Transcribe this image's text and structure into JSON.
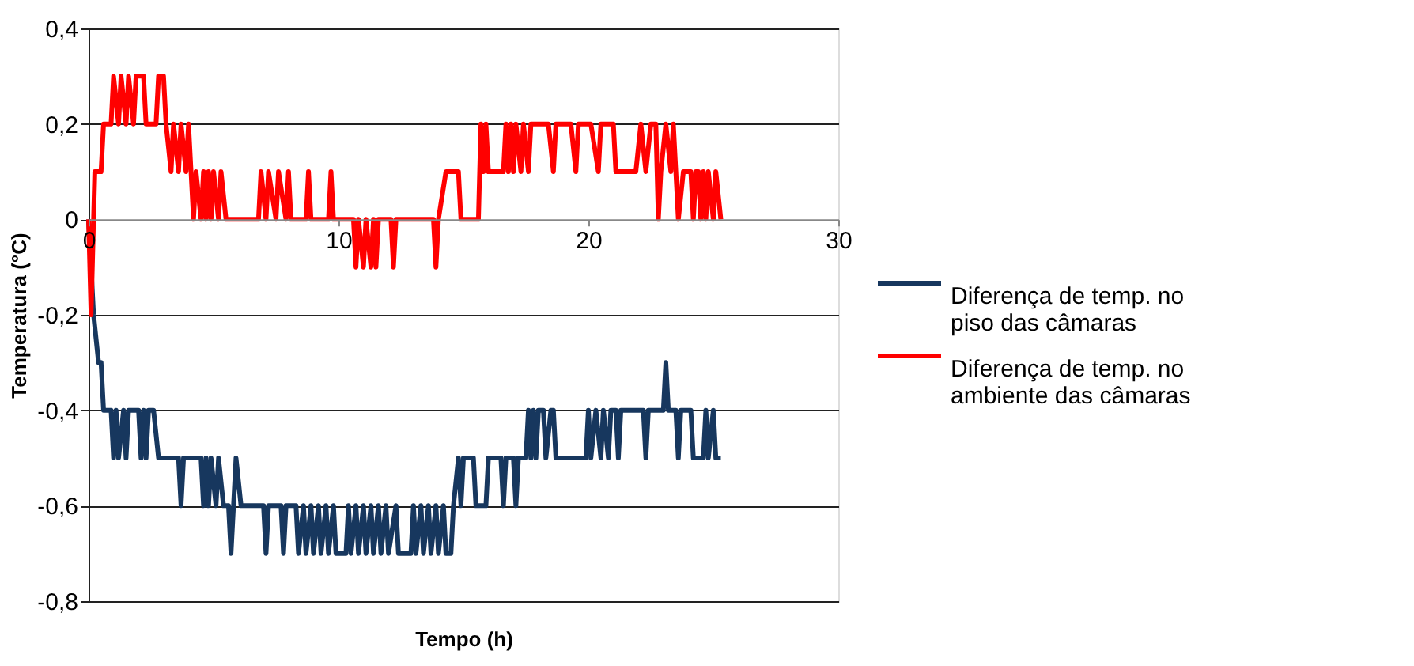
{
  "chart_data": {
    "type": "line",
    "xlabel": "Tempo (h)",
    "ylabel": "Temperatura (°C)",
    "xlim": [
      0,
      30
    ],
    "xticks": [
      0,
      10,
      20,
      30
    ],
    "ylim": [
      -0.8,
      0.4
    ],
    "yticks": [
      {
        "value": 0.4,
        "label": "0,4"
      },
      {
        "value": 0.2,
        "label": "0,2"
      },
      0,
      {
        "value": -0.2,
        "label": "-0,2"
      },
      {
        "value": -0.4,
        "label": "-0,4"
      },
      {
        "value": -0.6,
        "label": "-0,6"
      },
      {
        "value": -0.8,
        "label": "-0,8"
      }
    ],
    "grid": "y",
    "legend": "right",
    "marker": "none",
    "line_style": "solid",
    "series": [
      {
        "name": "Diferença de temp. no piso das câmaras",
        "color": "#17375e",
        "x": [
          0,
          0.2,
          0.4,
          0.5,
          0.6,
          0.9,
          1.0,
          1.1,
          1.2,
          1.4,
          1.5,
          1.6,
          2.0,
          2.1,
          2.2,
          2.3,
          2.4,
          2.6,
          2.8,
          3.6,
          3.7,
          3.8,
          4.5,
          4.6,
          4.7,
          4.8,
          4.9,
          5.1,
          5.2,
          5.4,
          5.6,
          5.7,
          5.8,
          5.9,
          6.1,
          7.0,
          7.1,
          7.2,
          7.7,
          7.8,
          7.9,
          8.3,
          8.4,
          8.6,
          8.7,
          8.9,
          9.0,
          9.2,
          9.3,
          9.5,
          9.6,
          9.8,
          9.9,
          10.3,
          10.4,
          10.5,
          10.7,
          10.8,
          11.0,
          11.1,
          11.3,
          11.4,
          11.6,
          11.7,
          11.9,
          12.0,
          12.3,
          12.4,
          12.9,
          13.0,
          13.1,
          13.3,
          13.4,
          13.6,
          13.7,
          13.9,
          14.0,
          14.2,
          14.3,
          14.5,
          14.6,
          14.8,
          14.9,
          15.0,
          15.4,
          15.5,
          15.9,
          16.0,
          16.5,
          16.6,
          16.7,
          17.0,
          17.1,
          17.2,
          17.5,
          17.6,
          17.7,
          17.8,
          17.9,
          18.0,
          18.2,
          18.3,
          18.5,
          18.6,
          18.7,
          19.9,
          20.0,
          20.1,
          20.3,
          20.5,
          20.6,
          20.8,
          20.9,
          21.1,
          21.2,
          21.3,
          22.2,
          22.3,
          22.4,
          23.0,
          23.1,
          23.2,
          23.5,
          23.6,
          23.7,
          24.1,
          24.2,
          24.6,
          24.7,
          24.8,
          25.0,
          25.1,
          25.3
        ],
        "values": [
          0,
          -0.2,
          -0.3,
          -0.3,
          -0.4,
          -0.4,
          -0.5,
          -0.4,
          -0.5,
          -0.4,
          -0.5,
          -0.4,
          -0.4,
          -0.5,
          -0.4,
          -0.5,
          -0.4,
          -0.4,
          -0.5,
          -0.5,
          -0.6,
          -0.5,
          -0.5,
          -0.6,
          -0.5,
          -0.6,
          -0.5,
          -0.6,
          -0.5,
          -0.6,
          -0.6,
          -0.7,
          -0.6,
          -0.5,
          -0.6,
          -0.6,
          -0.7,
          -0.6,
          -0.6,
          -0.7,
          -0.6,
          -0.6,
          -0.7,
          -0.6,
          -0.7,
          -0.6,
          -0.7,
          -0.6,
          -0.7,
          -0.6,
          -0.7,
          -0.6,
          -0.7,
          -0.7,
          -0.6,
          -0.7,
          -0.6,
          -0.7,
          -0.6,
          -0.7,
          -0.6,
          -0.7,
          -0.6,
          -0.7,
          -0.6,
          -0.7,
          -0.6,
          -0.7,
          -0.7,
          -0.6,
          -0.7,
          -0.6,
          -0.7,
          -0.6,
          -0.7,
          -0.6,
          -0.7,
          -0.6,
          -0.7,
          -0.7,
          -0.6,
          -0.5,
          -0.6,
          -0.5,
          -0.5,
          -0.6,
          -0.6,
          -0.5,
          -0.5,
          -0.6,
          -0.5,
          -0.5,
          -0.6,
          -0.5,
          -0.5,
          -0.4,
          -0.5,
          -0.4,
          -0.5,
          -0.4,
          -0.4,
          -0.5,
          -0.4,
          -0.4,
          -0.5,
          -0.5,
          -0.4,
          -0.5,
          -0.4,
          -0.5,
          -0.4,
          -0.5,
          -0.4,
          -0.4,
          -0.5,
          -0.4,
          -0.4,
          -0.5,
          -0.4,
          -0.4,
          -0.3,
          -0.4,
          -0.4,
          -0.5,
          -0.4,
          -0.4,
          -0.5,
          -0.5,
          -0.4,
          -0.5,
          -0.4,
          -0.5,
          -0.5
        ]
      },
      {
        "name": "Diferença  de temp. no ambiente das câmaras",
        "color": "#ff0000",
        "x": [
          0,
          0.1,
          0.25,
          0.5,
          0.6,
          0.9,
          1.0,
          1.2,
          1.3,
          1.5,
          1.6,
          1.8,
          1.9,
          2.2,
          2.3,
          2.7,
          2.8,
          3.0,
          3.1,
          3.3,
          3.4,
          3.6,
          3.7,
          3.9,
          4.0,
          4.2,
          4.3,
          4.5,
          4.6,
          4.7,
          4.8,
          4.9,
          5.0,
          5.2,
          5.3,
          5.5,
          6.8,
          6.9,
          7.1,
          7.2,
          7.5,
          7.6,
          7.9,
          8.0,
          8.1,
          8.7,
          8.8,
          8.9,
          9.6,
          9.7,
          9.8,
          10.6,
          10.7,
          10.8,
          11.0,
          11.1,
          11.3,
          11.4,
          11.5,
          11.6,
          12.1,
          12.2,
          12.3,
          13.8,
          13.9,
          14.0,
          14.3,
          14.8,
          14.9,
          15.6,
          15.7,
          15.8,
          15.9,
          16.0,
          16.6,
          16.7,
          16.8,
          16.9,
          17.0,
          17.1,
          17.3,
          17.4,
          17.6,
          17.7,
          18.4,
          18.6,
          18.7,
          19.3,
          19.5,
          19.6,
          20.1,
          20.4,
          20.5,
          21.0,
          21.1,
          21.9,
          22.1,
          22.3,
          22.5,
          22.7,
          22.8,
          22.9,
          23.1,
          23.3,
          23.4,
          23.6,
          23.8,
          24.1,
          24.2,
          24.3,
          24.4,
          24.5,
          24.6,
          24.7,
          24.8,
          25.0,
          25.1,
          25.3
        ],
        "values": [
          0,
          -0.2,
          0.1,
          0.1,
          0.2,
          0.2,
          0.3,
          0.2,
          0.3,
          0.2,
          0.3,
          0.2,
          0.3,
          0.3,
          0.2,
          0.2,
          0.3,
          0.3,
          0.2,
          0.1,
          0.2,
          0.1,
          0.2,
          0.1,
          0.2,
          0,
          0.1,
          0,
          0.1,
          0,
          0.1,
          0,
          0.1,
          0,
          0.1,
          0,
          0,
          0.1,
          0,
          0.1,
          0,
          0.1,
          0,
          0.1,
          0,
          0,
          0.1,
          0,
          0,
          0.1,
          0,
          0,
          -0.1,
          0,
          -0.1,
          0,
          -0.1,
          0,
          -0.1,
          0,
          0,
          -0.1,
          0,
          0,
          -0.1,
          0,
          0.1,
          0.1,
          0,
          0,
          0.2,
          0.1,
          0.2,
          0.1,
          0.1,
          0.2,
          0.1,
          0.2,
          0.1,
          0.2,
          0.1,
          0.2,
          0.1,
          0.2,
          0.2,
          0.1,
          0.2,
          0.2,
          0.1,
          0.2,
          0.2,
          0.1,
          0.2,
          0.2,
          0.1,
          0.1,
          0.2,
          0.1,
          0.2,
          0.2,
          0,
          0.1,
          0.2,
          0.1,
          0.2,
          0,
          0.1,
          0.1,
          0,
          0.1,
          0.1,
          0,
          0.1,
          0,
          0.1,
          0,
          0.1,
          0
        ]
      }
    ]
  }
}
